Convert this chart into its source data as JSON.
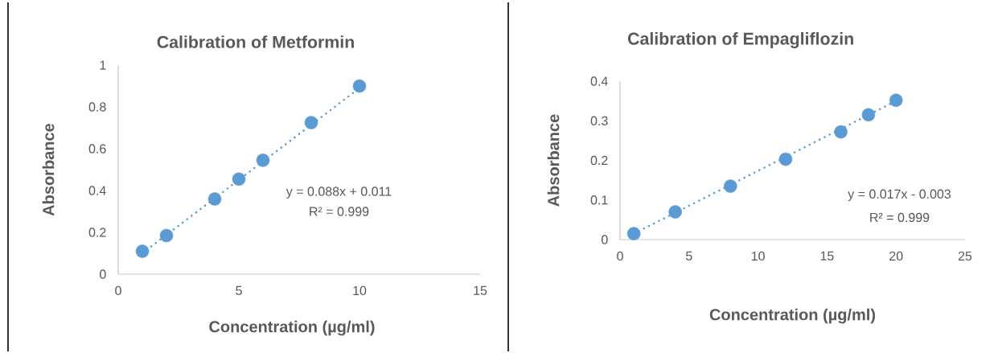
{
  "chart_data": [
    {
      "type": "scatter",
      "title": "Calibration of Metformin",
      "xlabel": "Concentration (µg/ml)",
      "ylabel": "Absorbance",
      "x": [
        1,
        2,
        4,
        5,
        6,
        8,
        10
      ],
      "series": [
        {
          "color": "#5b9bd5",
          "marker": "circle",
          "values": [
            0.11,
            0.185,
            0.36,
            0.455,
            0.545,
            0.725,
            0.9
          ]
        },
        {
          "type": "line",
          "color": "#5b9bd5",
          "marker": "none",
          "line_style": "dotted",
          "x": [
            1,
            10
          ],
          "values": [
            0.1,
            0.89
          ]
        }
      ],
      "xlim": [
        0,
        15
      ],
      "ylim": [
        0,
        1
      ],
      "xticks": [
        0,
        5,
        10,
        15
      ],
      "yticks": [
        0,
        0.2,
        0.4,
        0.6,
        0.8,
        1
      ],
      "annotations": [
        "y = 0.088x + 0.011",
        "R² = 0.999"
      ],
      "grid": false
    },
    {
      "type": "scatter",
      "title": "Calibration of Empagliflozin",
      "xlabel": "Concentration (µg/ml)",
      "ylabel": "Absorbance",
      "x": [
        1,
        4,
        8,
        12,
        16,
        18,
        20
      ],
      "series": [
        {
          "color": "#5b9bd5",
          "marker": "circle",
          "values": [
            0.015,
            0.07,
            0.135,
            0.203,
            0.272,
            0.315,
            0.352
          ]
        },
        {
          "type": "line",
          "color": "#5b9bd5",
          "marker": "none",
          "line_style": "dotted",
          "x": [
            1,
            20
          ],
          "values": [
            0.015,
            0.35
          ]
        }
      ],
      "xlim": [
        0,
        25
      ],
      "ylim": [
        0,
        0.4
      ],
      "xticks": [
        0,
        5,
        10,
        15,
        20,
        25
      ],
      "yticks": [
        0,
        0.1,
        0.2,
        0.3,
        0.4
      ],
      "annotations": [
        "y = 0.017x - 0.003",
        "R² = 0.999"
      ],
      "grid": false
    }
  ]
}
